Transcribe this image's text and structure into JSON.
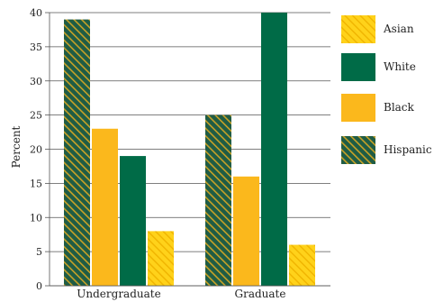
{
  "chart_data": {
    "type": "bar",
    "title": "",
    "xlabel": "",
    "ylabel": "Percent",
    "ylim": [
      0,
      40
    ],
    "yticks": [
      0,
      5,
      10,
      15,
      20,
      25,
      30,
      35,
      40
    ],
    "grid": true,
    "legend_position": "right",
    "categories": [
      "Undergraduate",
      "Graduate"
    ],
    "series": [
      {
        "name": "Hispanic",
        "values": [
          39,
          25
        ],
        "color": "#1f5c45",
        "pattern": "diagonal-hatch-gold"
      },
      {
        "name": "Black",
        "values": [
          23,
          16
        ],
        "color": "#fbb81c",
        "pattern": "solid"
      },
      {
        "name": "White",
        "values": [
          19,
          40
        ],
        "color": "#006b47",
        "pattern": "solid"
      },
      {
        "name": "Asian",
        "values": [
          8,
          6
        ],
        "color": "#fbd000",
        "pattern": "diagonal-hatch-yellow"
      }
    ],
    "legend_order": [
      "Asian",
      "White",
      "Black",
      "Hispanic"
    ]
  }
}
